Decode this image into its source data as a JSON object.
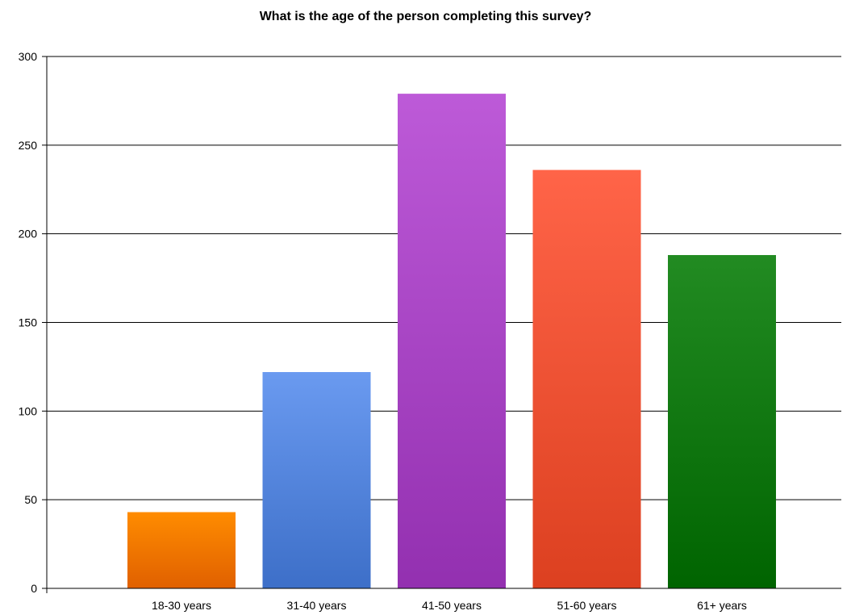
{
  "chart_data": {
    "type": "bar",
    "title": "What is the age of the person completing this survey?",
    "xlabel": "",
    "ylabel": "",
    "categories": [
      "18-30 years",
      "31-40 years",
      "41-50 years",
      "51-60 years",
      "61+ years"
    ],
    "values": [
      43,
      122,
      279,
      236,
      188
    ],
    "ylim": [
      0,
      300
    ],
    "yticks": [
      0,
      50,
      100,
      150,
      200,
      250,
      300
    ],
    "ytick_labels": [
      "0",
      "50",
      "100",
      "150",
      "200",
      "250",
      "300"
    ],
    "grid": true,
    "legend": "none",
    "colors": [
      {
        "top": "#ff8c00",
        "bottom": "#e06000"
      },
      {
        "top": "#6a9af0",
        "bottom": "#3d6fc8"
      },
      {
        "top": "#bd5ad8",
        "bottom": "#9330b0"
      },
      {
        "top": "#ff6448",
        "bottom": "#dc4020"
      },
      {
        "top": "#228b22",
        "bottom": "#006400"
      }
    ]
  }
}
